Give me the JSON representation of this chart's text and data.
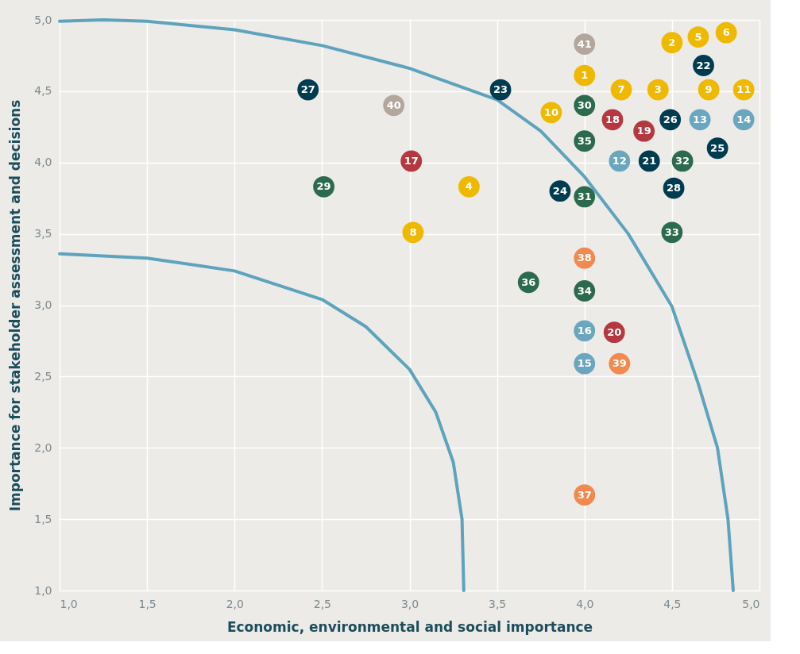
{
  "chart_data": {
    "type": "scatter",
    "xlabel": "Economic, environmental and social importance",
    "ylabel": "Importance for stakeholder assessment and decisions",
    "xlim": [
      1.0,
      5.0
    ],
    "ylim": [
      1.0,
      5.0
    ],
    "xticks": [
      {
        "value": 1.0,
        "label": "1,0"
      },
      {
        "value": 1.5,
        "label": "1,5"
      },
      {
        "value": 2.0,
        "label": "2,0"
      },
      {
        "value": 2.5,
        "label": "2,5"
      },
      {
        "value": 3.0,
        "label": "3,0"
      },
      {
        "value": 3.5,
        "label": "3,5"
      },
      {
        "value": 4.0,
        "label": "4,0"
      },
      {
        "value": 4.5,
        "label": "4,5"
      },
      {
        "value": 5.0,
        "label": "5,0"
      }
    ],
    "yticks": [
      {
        "value": 1.0,
        "label": "1,0"
      },
      {
        "value": 1.5,
        "label": "1,5"
      },
      {
        "value": 2.0,
        "label": "2,0"
      },
      {
        "value": 2.5,
        "label": "2,5"
      },
      {
        "value": 3.0,
        "label": "3,0"
      },
      {
        "value": 3.5,
        "label": "3,5"
      },
      {
        "value": 4.0,
        "label": "4,0"
      },
      {
        "value": 4.5,
        "label": "4,5"
      },
      {
        "value": 5.0,
        "label": "5,0"
      }
    ],
    "grid": true,
    "marker": "circle",
    "series": [
      {
        "type": "line",
        "color": "#5ea3bd",
        "marker": "none",
        "x": [
          1.0,
          1.25,
          1.5,
          2.0,
          2.5,
          3.0,
          3.5,
          3.75,
          4.0,
          4.25,
          4.5,
          4.65,
          4.76,
          4.82,
          4.85
        ],
        "values": [
          4.99,
          5.0,
          4.99,
          4.93,
          4.82,
          4.66,
          4.44,
          4.22,
          3.9,
          3.5,
          2.99,
          2.45,
          2.0,
          1.5,
          1.0
        ]
      },
      {
        "type": "line",
        "color": "#5ea3bd",
        "marker": "none",
        "x": [
          1.0,
          1.5,
          2.0,
          2.5,
          2.75,
          3.0,
          3.15,
          3.25,
          3.3,
          3.31
        ],
        "values": [
          3.36,
          3.33,
          3.24,
          3.04,
          2.85,
          2.55,
          2.25,
          1.9,
          1.5,
          1.0
        ]
      },
      {
        "type": "scatter",
        "x": [
          4.0,
          4.5,
          4.65,
          4.81,
          4.68,
          4.0,
          2.42,
          3.52,
          4.21,
          4.42,
          4.71,
          4.91,
          2.91,
          3.81,
          4.0,
          4.16,
          4.34,
          4.49,
          4.66,
          4.91,
          4.0,
          4.76,
          3.01,
          4.2,
          4.37,
          4.56,
          2.51,
          3.34,
          3.86,
          4.0,
          4.51,
          3.02,
          4.5,
          4.0,
          3.68,
          4.0,
          4.0,
          4.17,
          4.0,
          4.2,
          4.0
        ],
        "values": [
          4.83,
          4.84,
          4.88,
          4.91,
          4.68,
          4.61,
          4.51,
          4.51,
          4.51,
          4.51,
          4.51,
          4.51,
          4.4,
          4.35,
          4.4,
          4.3,
          4.22,
          4.3,
          4.3,
          4.3,
          4.15,
          4.1,
          4.01,
          4.01,
          4.01,
          4.01,
          3.83,
          3.83,
          3.8,
          3.76,
          3.82,
          3.51,
          3.51,
          3.33,
          3.16,
          3.1,
          2.82,
          2.81,
          2.59,
          2.59,
          1.67
        ],
        "colors": [
          "#b3a69c",
          "#efb900",
          "#efb900",
          "#efb900",
          "#003c50",
          "#efb900",
          "#003c50",
          "#003c50",
          "#efb900",
          "#efb900",
          "#efb900",
          "#efb900",
          "#b3a69c",
          "#efb900",
          "#2c6a4e",
          "#b5373f",
          "#b5373f",
          "#003c50",
          "#6ba6bf",
          "#6ba6bf",
          "#2c6a4e",
          "#003c50",
          "#b5373f",
          "#6ba6bf",
          "#003c50",
          "#2c6a4e",
          "#2c6a4e",
          "#efb900",
          "#003c50",
          "#2c6a4e",
          "#003c50",
          "#efb900",
          "#2c6a4e",
          "#f28a50",
          "#2c6a4e",
          "#2c6a4e",
          "#6ba6bf",
          "#b5373f",
          "#6ba6bf",
          "#f28a50",
          "#f28a50"
        ]
      }
    ],
    "annotations": [
      {
        "text": "1",
        "x": 4.0,
        "y": 4.61
      },
      {
        "text": "41",
        "x": 4.0,
        "y": 4.83
      },
      {
        "text": "2",
        "x": 4.5,
        "y": 4.84
      },
      {
        "text": "22",
        "x": 4.68,
        "y": 4.68
      },
      {
        "text": "3",
        "x": 4.42,
        "y": 4.51
      },
      {
        "text": "27",
        "x": 2.42,
        "y": 4.51
      },
      {
        "text": "4",
        "x": 3.34,
        "y": 3.83
      },
      {
        "text": "23",
        "x": 3.52,
        "y": 4.51
      },
      {
        "text": "5",
        "x": 4.65,
        "y": 4.88
      },
      {
        "text": "11",
        "x": 4.91,
        "y": 4.51
      },
      {
        "text": "6",
        "x": 4.81,
        "y": 4.91
      },
      {
        "text": "40",
        "x": 2.91,
        "y": 4.4
      },
      {
        "text": "7",
        "x": 4.21,
        "y": 4.51
      },
      {
        "text": "10",
        "x": 3.81,
        "y": 4.35
      },
      {
        "text": "8",
        "x": 3.02,
        "y": 3.51
      },
      {
        "text": "30",
        "x": 4.0,
        "y": 4.4
      },
      {
        "text": "9",
        "x": 4.71,
        "y": 4.51
      },
      {
        "text": "18",
        "x": 4.16,
        "y": 4.3
      },
      {
        "text": "19",
        "x": 4.34,
        "y": 4.22
      },
      {
        "text": "26",
        "x": 4.49,
        "y": 4.3
      },
      {
        "text": "13",
        "x": 4.66,
        "y": 4.3
      },
      {
        "text": "14",
        "x": 4.91,
        "y": 4.3
      },
      {
        "text": "35",
        "x": 4.0,
        "y": 4.15
      },
      {
        "text": "25",
        "x": 4.76,
        "y": 4.1
      },
      {
        "text": "17",
        "x": 3.01,
        "y": 4.01
      },
      {
        "text": "12",
        "x": 4.2,
        "y": 4.01
      },
      {
        "text": "21",
        "x": 4.37,
        "y": 4.01
      },
      {
        "text": "32",
        "x": 4.56,
        "y": 4.01
      },
      {
        "text": "29",
        "x": 2.51,
        "y": 3.83
      },
      {
        "text": "24",
        "x": 3.86,
        "y": 3.8
      },
      {
        "text": "31",
        "x": 4.0,
        "y": 3.76
      },
      {
        "text": "28",
        "x": 4.51,
        "y": 3.82
      },
      {
        "text": "33",
        "x": 4.5,
        "y": 3.51
      },
      {
        "text": "38",
        "x": 4.0,
        "y": 3.33
      },
      {
        "text": "36",
        "x": 3.68,
        "y": 3.16
      },
      {
        "text": "34",
        "x": 4.0,
        "y": 3.1
      },
      {
        "text": "16",
        "x": 4.0,
        "y": 2.82
      },
      {
        "text": "20",
        "x": 4.17,
        "y": 2.81
      },
      {
        "text": "15",
        "x": 4.0,
        "y": 2.59
      },
      {
        "text": "39",
        "x": 4.2,
        "y": 2.59
      },
      {
        "text": "37",
        "x": 4.0,
        "y": 1.67
      }
    ]
  }
}
